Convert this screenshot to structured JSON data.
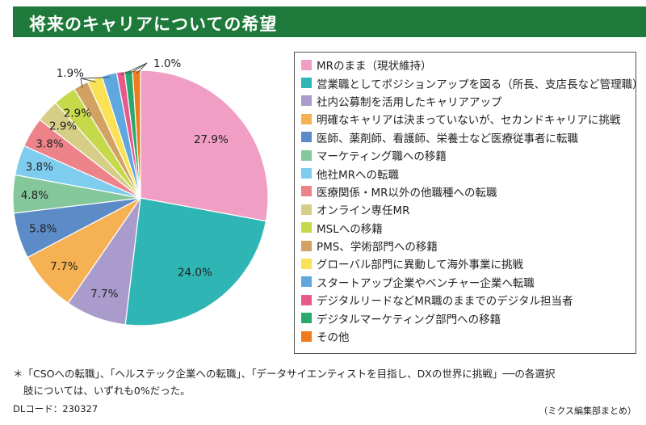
{
  "title": "将来のキャリアについての希望",
  "chart_data": {
    "type": "pie",
    "categories": [
      "MRのまま（現状維持）",
      "営業職としてポジションアップを図る（所長、支店長など管理職）",
      "社内公募制を活用したキャリアアップ",
      "明確なキャリアは決まっていないが、セカンドキャリアに挑戦",
      "医師、薬剤師、看護師、栄養士など医療従事者に転職",
      "マーケティング職への移籍",
      "他社MRへの転職",
      "医療関係・MR以外の他職種への転職",
      "オンライン専任MR",
      "MSLへの移籍",
      "PMS、学術部門への移籍",
      "グローバル部門に異動して海外事業に挑戦",
      "スタートアップ企業やベンチャー企業へ転職",
      "デジタルリードなどMR職のままでのデジタル担当者",
      "デジタルマーケティング部門への移籍",
      "その他"
    ],
    "values": [
      27.9,
      24.0,
      7.7,
      7.7,
      5.8,
      4.8,
      3.8,
      3.8,
      2.9,
      2.9,
      1.9,
      1.9,
      1.9,
      1.0,
      1.0,
      1.0
    ],
    "data_labels": [
      "27.9%",
      "24.0%",
      "7.7%",
      "7.7%",
      "5.8%",
      "4.8%",
      "3.8%",
      "3.8%",
      "2.9%",
      "2.9%",
      "",
      "",
      "",
      "",
      "",
      ""
    ],
    "group_labels": [
      "1.9%",
      "1.0%"
    ],
    "colors": [
      "#f09ec4",
      "#2fb6b4",
      "#a99bcb",
      "#f6b153",
      "#5b8cc8",
      "#84c79a",
      "#7fcdee",
      "#ee8289",
      "#d6cd86",
      "#c6d94a",
      "#d2a262",
      "#fae256",
      "#5ea8df",
      "#e8598b",
      "#2aa96d",
      "#ef7b1e"
    ],
    "legend_position": "right"
  },
  "footnote": {
    "line1": "＊「CSOへの転職」、「ヘルステック企業への転職」、「データサイエンティストを目指し、DXの世界に挑戦」──の各選択",
    "line2": "肢については、いずれも0%だった。"
  },
  "dl_code": "DLコード：230327",
  "credit": "（ミクス編集部まとめ）"
}
